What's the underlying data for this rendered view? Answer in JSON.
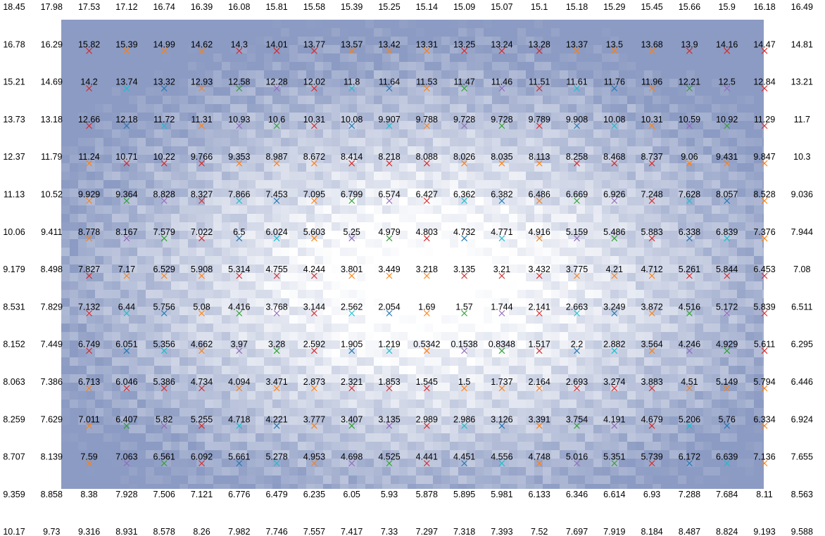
{
  "chart_data": {
    "type": "heatmap",
    "title": "",
    "xlabel": "",
    "ylabel": "",
    "grid": false,
    "legend": "none",
    "rows": [
      [
        "18.45",
        "17.98",
        "17.53",
        "17.12",
        "16.74",
        "16.39",
        "16.08",
        "15.81",
        "15.58",
        "15.39",
        "15.25",
        "15.14",
        "15.09",
        "15.07",
        "15.1",
        "15.18",
        "15.29",
        "15.45",
        "15.66",
        "15.9",
        "16.18",
        "16.49"
      ],
      [
        "16.78",
        "16.29",
        "15.82",
        "15.39",
        "14.99",
        "14.62",
        "14.3",
        "14.01",
        "13.77",
        "13.57",
        "13.42",
        "13.31",
        "13.25",
        "13.24",
        "13.28",
        "13.37",
        "13.5",
        "13.68",
        "13.9",
        "14.16",
        "14.47",
        "14.81"
      ],
      [
        "15.21",
        "14.69",
        "14.2",
        "13.74",
        "13.32",
        "12.93",
        "12.58",
        "12.28",
        "12.02",
        "11.8",
        "11.64",
        "11.53",
        "11.47",
        "11.46",
        "11.51",
        "11.61",
        "11.76",
        "11.96",
        "12.21",
        "12.5",
        "12.84",
        "13.21"
      ],
      [
        "13.73",
        "13.18",
        "12.66",
        "12.18",
        "11.72",
        "11.31",
        "10.93",
        "10.6",
        "10.31",
        "10.08",
        "9.907",
        "9.788",
        "9.728",
        "9.728",
        "9.789",
        "9.908",
        "10.08",
        "10.31",
        "10.59",
        "10.92",
        "11.29",
        "11.7"
      ],
      [
        "12.37",
        "11.79",
        "11.24",
        "10.71",
        "10.22",
        "9.766",
        "9.353",
        "8.987",
        "8.672",
        "8.414",
        "8.218",
        "8.088",
        "8.026",
        "8.035",
        "8.113",
        "8.258",
        "8.468",
        "8.737",
        "9.06",
        "9.431",
        "9.847",
        "10.3"
      ],
      [
        "11.13",
        "10.52",
        "9.929",
        "9.364",
        "8.828",
        "8.327",
        "7.866",
        "7.453",
        "7.095",
        "6.799",
        "6.574",
        "6.427",
        "6.362",
        "6.382",
        "6.486",
        "6.669",
        "6.926",
        "7.248",
        "7.628",
        "8.057",
        "8.528",
        "9.036"
      ],
      [
        "10.06",
        "9.411",
        "8.778",
        "8.167",
        "7.579",
        "7.022",
        "6.5",
        "6.024",
        "5.603",
        "5.25",
        "4.979",
        "4.803",
        "4.732",
        "4.771",
        "4.916",
        "5.159",
        "5.486",
        "5.883",
        "6.338",
        "6.839",
        "7.376",
        "7.944"
      ],
      [
        "9.179",
        "8.498",
        "7.827",
        "7.17",
        "6.529",
        "5.908",
        "5.314",
        "4.755",
        "4.244",
        "3.801",
        "3.449",
        "3.218",
        "3.135",
        "3.21",
        "3.432",
        "3.775",
        "4.21",
        "4.712",
        "5.261",
        "5.844",
        "6.453",
        "7.08"
      ],
      [
        "8.531",
        "7.829",
        "7.132",
        "6.44",
        "5.756",
        "5.08",
        "4.416",
        "3.768",
        "3.144",
        "2.562",
        "2.054",
        "1.69",
        "1.57",
        "1.744",
        "2.141",
        "2.663",
        "3.249",
        "3.872",
        "4.516",
        "5.172",
        "5.839",
        "6.511"
      ],
      [
        "8.152",
        "7.449",
        "6.749",
        "6.051",
        "5.356",
        "4.662",
        "3.97",
        "3.28",
        "2.592",
        "1.905",
        "1.219",
        "0.5342",
        "0.1538",
        "0.8348",
        "1.517",
        "2.2",
        "2.882",
        "3.564",
        "4.246",
        "4.929",
        "5.611",
        "6.295"
      ],
      [
        "8.063",
        "7.386",
        "6.713",
        "6.046",
        "5.386",
        "4.734",
        "4.094",
        "3.471",
        "2.873",
        "2.321",
        "1.853",
        "1.545",
        "1.5",
        "1.737",
        "2.164",
        "2.693",
        "3.274",
        "3.883",
        "4.51",
        "5.149",
        "5.794",
        "6.446"
      ],
      [
        "8.259",
        "7.629",
        "7.011",
        "6.407",
        "5.82",
        "5.255",
        "4.718",
        "4.221",
        "3.777",
        "3.407",
        "3.135",
        "2.989",
        "2.986",
        "3.126",
        "3.391",
        "3.754",
        "4.191",
        "4.679",
        "5.206",
        "5.76",
        "6.334",
        "6.924"
      ],
      [
        "8.707",
        "8.139",
        "7.59",
        "7.063",
        "6.561",
        "6.092",
        "5.661",
        "5.278",
        "4.953",
        "4.698",
        "4.525",
        "4.441",
        "4.451",
        "4.556",
        "4.748",
        "5.016",
        "5.351",
        "5.739",
        "6.172",
        "6.639",
        "7.136",
        "7.655"
      ],
      [
        "9.359",
        "8.858",
        "8.38",
        "7.928",
        "7.506",
        "7.121",
        "6.776",
        "6.479",
        "6.235",
        "6.05",
        "5.93",
        "5.878",
        "5.895",
        "5.981",
        "6.133",
        "6.346",
        "6.614",
        "6.93",
        "7.288",
        "7.684",
        "8.11",
        "8.563"
      ],
      [
        "10.17",
        "9.73",
        "9.316",
        "8.931",
        "8.578",
        "8.26",
        "7.982",
        "7.746",
        "7.557",
        "7.417",
        "7.33",
        "7.297",
        "7.318",
        "7.393",
        "7.52",
        "7.697",
        "7.919",
        "8.184",
        "8.487",
        "8.824",
        "9.193",
        "9.588"
      ]
    ],
    "marker_colors": [
      "#1f77b4",
      "#d62728",
      "#2ca02c",
      "#9467bd",
      "#ff7f0e",
      "#17becf"
    ],
    "background_colors": {
      "light": "#ffffff",
      "mid": "#c9d6ee",
      "dark": "#8795bb"
    }
  }
}
